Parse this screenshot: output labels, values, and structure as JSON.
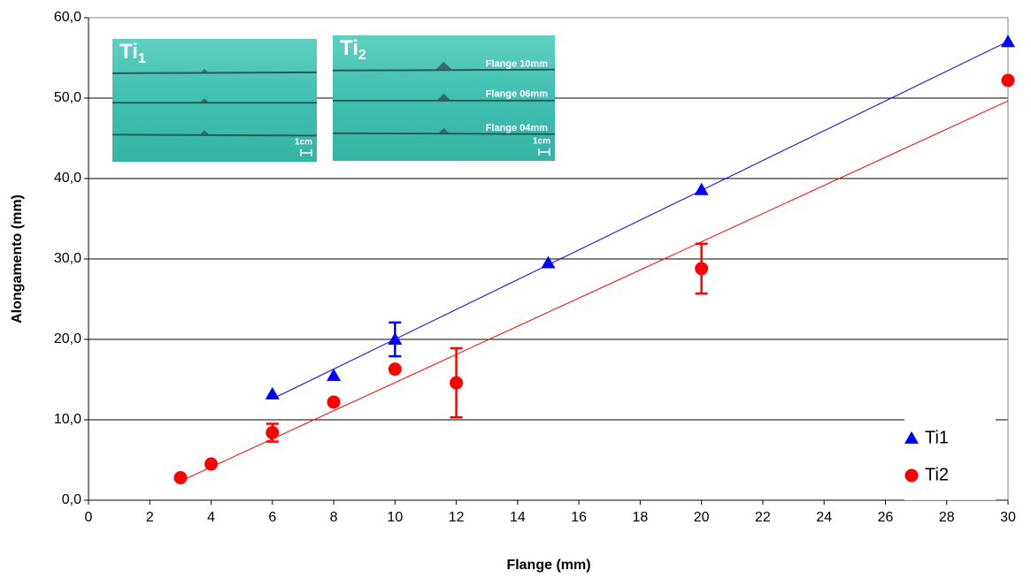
{
  "chart_data": {
    "type": "scatter",
    "xlabel": "Flange (mm)",
    "ylabel": "Alongamento (mm)",
    "xlim": [
      0,
      30
    ],
    "xticks": [
      0,
      2,
      4,
      6,
      8,
      10,
      12,
      14,
      16,
      18,
      20,
      22,
      24,
      26,
      28,
      30
    ],
    "ylim": [
      0,
      60
    ],
    "yticks": [
      {
        "value": 0,
        "label": "0,0"
      },
      {
        "value": 10,
        "label": "10,0"
      },
      {
        "value": 20,
        "label": "20,0"
      },
      {
        "value": 30,
        "label": "30,0"
      },
      {
        "value": 40,
        "label": "40,0"
      },
      {
        "value": 50,
        "label": "50,0"
      },
      {
        "value": 60,
        "label": "60,0"
      }
    ],
    "grid": true,
    "legend": "lower right",
    "trendline": "linear",
    "series": [
      {
        "name": "Ti1",
        "color": "#0000ff",
        "marker": "triangle",
        "x": [
          6,
          8,
          10,
          15,
          20,
          30
        ],
        "values": [
          13.2,
          15.5,
          20.0,
          29.5,
          38.6,
          57.0
        ],
        "errors": [
          null,
          null,
          2.1,
          null,
          null,
          null
        ]
      },
      {
        "name": "Ti2",
        "color": "#ff0000",
        "marker": "circle",
        "x": [
          3,
          4,
          6,
          8,
          10,
          12,
          20,
          30
        ],
        "values": [
          2.8,
          4.5,
          8.4,
          12.2,
          16.3,
          14.6,
          28.8,
          52.2
        ],
        "errors": [
          null,
          null,
          1.1,
          null,
          null,
          4.3,
          3.1,
          null
        ]
      }
    ],
    "insets": [
      {
        "title": "Ti",
        "subscript": "1",
        "labels": [],
        "scale": "1cm"
      },
      {
        "title": "Ti",
        "subscript": "2",
        "labels": [
          "Flange 10mm",
          "Flange 06mm",
          "Flange 04mm"
        ],
        "scale": "1cm"
      }
    ]
  }
}
